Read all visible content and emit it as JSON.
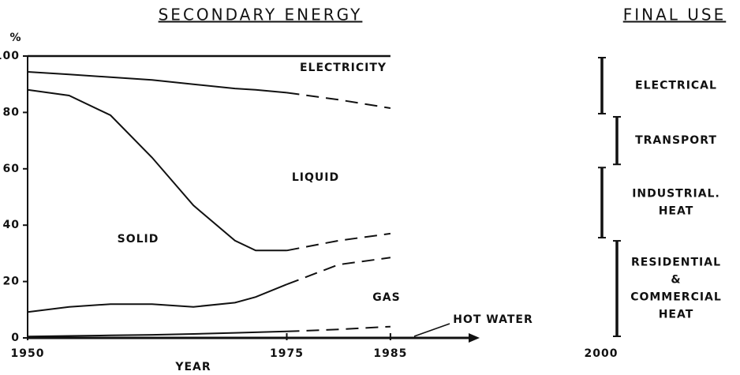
{
  "chart_data": [
    {
      "type": "stacked-line",
      "title": "SECONDARY ENERGY",
      "y_label": "%",
      "x_label": "YEAR",
      "x": [
        1950,
        1954,
        1958,
        1962,
        1966,
        1970,
        1972,
        1975,
        1980,
        1985
      ],
      "series": [
        {
          "name": "HOT WATER",
          "color": "#111111",
          "values": [
            0.5,
            0.7,
            0.9,
            1.1,
            1.4,
            1.8,
            2,
            2.3,
            3,
            4
          ]
        },
        {
          "name": "GAS",
          "color": "#111111",
          "values": [
            8.7,
            10.3,
            11.1,
            10.9,
            9.6,
            10.7,
            12.5,
            16.7,
            23,
            24.5
          ]
        },
        {
          "name": "SOLID",
          "color": "#111111",
          "values": [
            78.8,
            75,
            67,
            52,
            36,
            22,
            16.5,
            12,
            8.5,
            8.5
          ]
        },
        {
          "name": "LIQUID",
          "color": "#111111",
          "values": [
            6.4,
            7.5,
            13.5,
            27.5,
            43,
            54,
            57,
            56,
            50,
            44.5
          ]
        },
        {
          "name": "ELECTRICITY",
          "color": "#111111",
          "values": [
            5.6,
            6.5,
            7.5,
            8.5,
            10,
            11.5,
            12,
            13,
            15.5,
            18.5
          ]
        }
      ],
      "projection_from": 1975,
      "xlim": [
        1950,
        1993
      ],
      "xticks": [
        1950,
        1975,
        1985
      ],
      "ylim": [
        0,
        100
      ],
      "yticks": [
        0,
        20,
        40,
        60,
        80,
        100
      ]
    },
    {
      "type": "bracket",
      "title": "FINAL USE",
      "categories": [
        "2000"
      ],
      "series": [
        {
          "name": [
            "RESIDENTIAL",
            "&",
            "COMMERCIAL",
            "HEAT"
          ],
          "color": "#111111",
          "values": [
            35
          ]
        },
        {
          "name": [
            "INDUSTRIAL.",
            "HEAT"
          ],
          "color": "#111111",
          "values": [
            26
          ]
        },
        {
          "name": [
            "TRANSPORT"
          ],
          "color": "#111111",
          "values": [
            18
          ]
        },
        {
          "name": [
            "ELECTRICAL"
          ],
          "color": "#111111",
          "values": [
            21
          ]
        }
      ],
      "ylim": [
        0,
        100
      ]
    }
  ]
}
